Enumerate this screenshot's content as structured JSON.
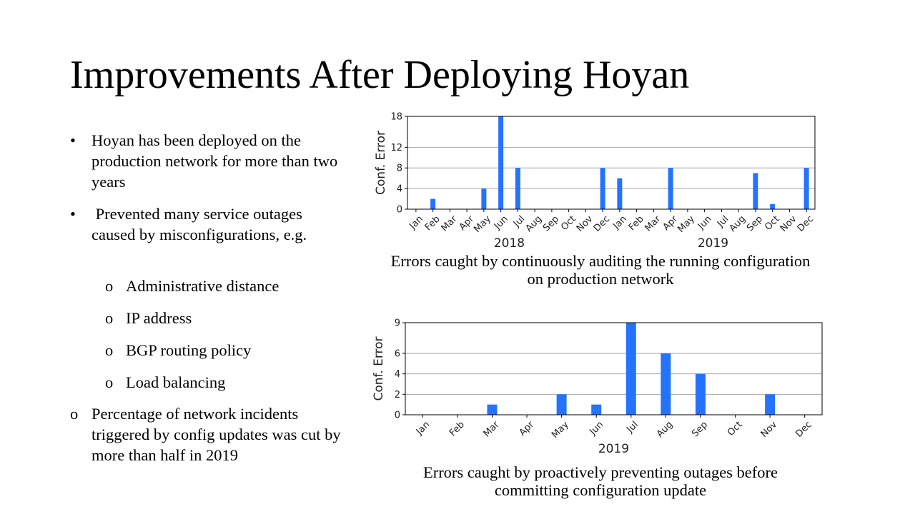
{
  "slide": {
    "title": "Improvements After Deploying Hoyan"
  },
  "bullets": [
    {
      "marker": "•",
      "level": 0,
      "text": "Hoyan has been deployed on the production network for more than two years"
    },
    {
      "marker": "•",
      "level": 0,
      "text": " Prevented many service outages caused by misconfigurations, e.g."
    },
    {
      "marker": "o",
      "level": 1,
      "text": "Administrative distance"
    },
    {
      "marker": "o",
      "level": 1,
      "text": "IP address"
    },
    {
      "marker": "o",
      "level": 1,
      "text": "BGP routing policy"
    },
    {
      "marker": "o",
      "level": 1,
      "text": "Load balancing"
    },
    {
      "marker": "o",
      "level": 0,
      "text": "Percentage of network incidents triggered by config updates was cut by more than half in 2019"
    }
  ],
  "colors": {
    "bar": "#2473ff",
    "grid": "#a6a6a6",
    "axis": "#000000"
  },
  "chart_data": [
    {
      "type": "bar",
      "title": "",
      "ylabel": "Conf. Error",
      "xlabel": "",
      "ylim": [
        0,
        18
      ],
      "yticks": [
        0,
        4,
        8,
        12,
        18
      ],
      "grid": true,
      "categories": [
        "Jan",
        "Feb",
        "Mar",
        "Apr",
        "May",
        "Jun",
        "Jul",
        "Aug",
        "Sep",
        "Oct",
        "Nov",
        "Dec",
        "Jan",
        "Feb",
        "Mar",
        "Apr",
        "May",
        "Jun",
        "Jul",
        "Aug",
        "Sep",
        "Oct",
        "Nov",
        "Dec"
      ],
      "values": [
        0,
        2,
        0,
        0,
        4,
        18,
        8,
        0,
        0,
        0,
        0,
        8,
        6,
        0,
        0,
        8,
        0,
        0,
        0,
        0,
        7,
        1,
        0,
        8
      ],
      "groups": [
        "2018",
        "2019"
      ],
      "caption": "Errors caught by continuously auditing the running configuration on production network"
    },
    {
      "type": "bar",
      "title": "",
      "ylabel": "Conf. Error",
      "xlabel": "2019",
      "ylim": [
        0,
        9
      ],
      "yticks": [
        0,
        2,
        4,
        6,
        9
      ],
      "grid": true,
      "categories": [
        "Jan",
        "Feb",
        "Mar",
        "Apr",
        "May",
        "Jun",
        "Jul",
        "Aug",
        "Sep",
        "Oct",
        "Nov",
        "Dec"
      ],
      "values": [
        0,
        0,
        1,
        0,
        2,
        1,
        9,
        6,
        4,
        0,
        2,
        0
      ],
      "groups": [],
      "caption": "Errors caught by proactively preventing outages before committing configuration update"
    }
  ]
}
